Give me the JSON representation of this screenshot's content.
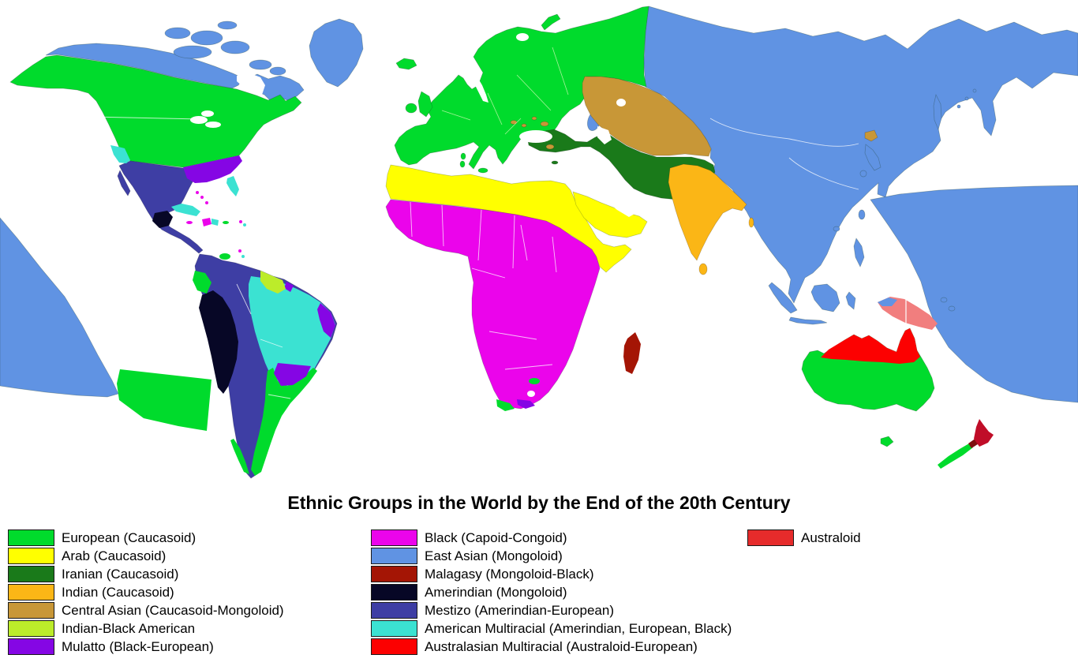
{
  "title": "Ethnic Groups in the World by the End of the 20th Century",
  "legend": {
    "columns": [
      {
        "name": "column-1",
        "items": [
          {
            "key": "european",
            "label": "European (Caucasoid)"
          },
          {
            "key": "arab",
            "label": "Arab (Caucasoid)"
          },
          {
            "key": "iranian",
            "label": "Iranian (Caucasoid)"
          },
          {
            "key": "indian",
            "label": "Indian (Caucasoid)"
          },
          {
            "key": "central_asian",
            "label": "Central Asian (Caucasoid-Mongoloid)"
          },
          {
            "key": "indian_black_american",
            "label": "Indian-Black American"
          },
          {
            "key": "mulatto",
            "label": "Mulatto (Black-European)"
          }
        ]
      },
      {
        "name": "column-2",
        "items": [
          {
            "key": "black",
            "label": "Black (Capoid-Congoid)"
          },
          {
            "key": "east_asian",
            "label": "East Asian (Mongoloid)"
          },
          {
            "key": "malagasy",
            "label": "Malagasy (Mongoloid-Black)"
          },
          {
            "key": "amerindian",
            "label": "Amerindian (Mongoloid)"
          },
          {
            "key": "mestizo",
            "label": "Mestizo (Amerindian-European)"
          },
          {
            "key": "american_multiracial",
            "label": "American Multiracial (Amerindian, European, Black)"
          },
          {
            "key": "australasian_multiracial",
            "label": "Australasian Multiracial (Australoid-European)"
          }
        ]
      },
      {
        "name": "column-3",
        "items": [
          {
            "key": "australoid",
            "label": "Australoid"
          }
        ]
      }
    ]
  },
  "palette": {
    "european": "#00DB2C",
    "arab": "#FFFF00",
    "iranian": "#1A7A1A",
    "indian": "#FBB616",
    "central_asian": "#C89737",
    "indian_black_american": "#BCEC2A",
    "mulatto": "#8506E4",
    "black": "#EB04EB",
    "east_asian": "#6093E3",
    "malagasy": "#A41505",
    "amerindian": "#070726",
    "mestizo": "#3E3EA4",
    "american_multiracial": "#3BE2D2",
    "australasian_multiracial": "#FC0101",
    "australoid": "#E62B2B",
    "papuan_mixed": "#F17E7E",
    "nz_north_red": "#C00D28",
    "nz_dark_red": "#7E1010",
    "ocean": "#FFFFFF"
  }
}
